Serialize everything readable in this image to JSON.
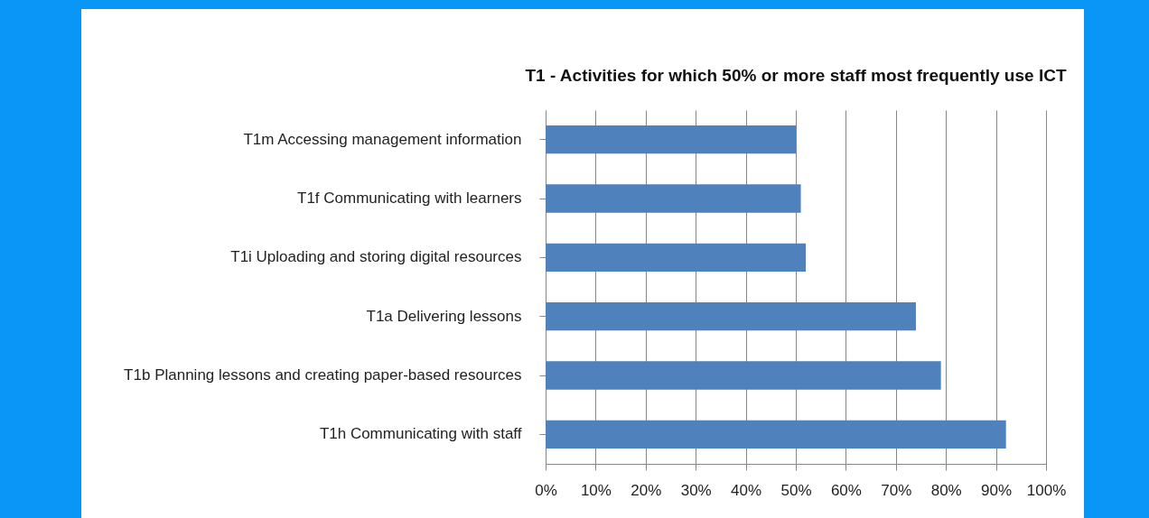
{
  "chart_data": {
    "type": "bar",
    "orientation": "horizontal",
    "title": "T1 - Activities for which 50% or more staff most frequently  use ICT",
    "categories": [
      "T1m Accessing management information",
      "T1f Communicating with learners",
      "T1i Uploading and storing digital resources",
      "T1a Delivering lessons",
      "T1b Planning lessons and creating paper-based resources",
      "T1h Communicating with staff"
    ],
    "values": [
      50,
      51,
      52,
      74,
      79,
      92
    ],
    "color": "#4f81bd",
    "xlim": [
      0,
      100
    ],
    "xticks": [
      {
        "value": 0,
        "label": "0%"
      },
      {
        "value": 10,
        "label": "10%"
      },
      {
        "value": 20,
        "label": "20%"
      },
      {
        "value": 30,
        "label": "30%"
      },
      {
        "value": 40,
        "label": "40%"
      },
      {
        "value": 50,
        "label": "50%"
      },
      {
        "value": 60,
        "label": "60%"
      },
      {
        "value": 70,
        "label": "70%"
      },
      {
        "value": 80,
        "label": "80%"
      },
      {
        "value": 90,
        "label": "90%"
      },
      {
        "value": 100,
        "label": "100%"
      }
    ],
    "grid": "x"
  }
}
